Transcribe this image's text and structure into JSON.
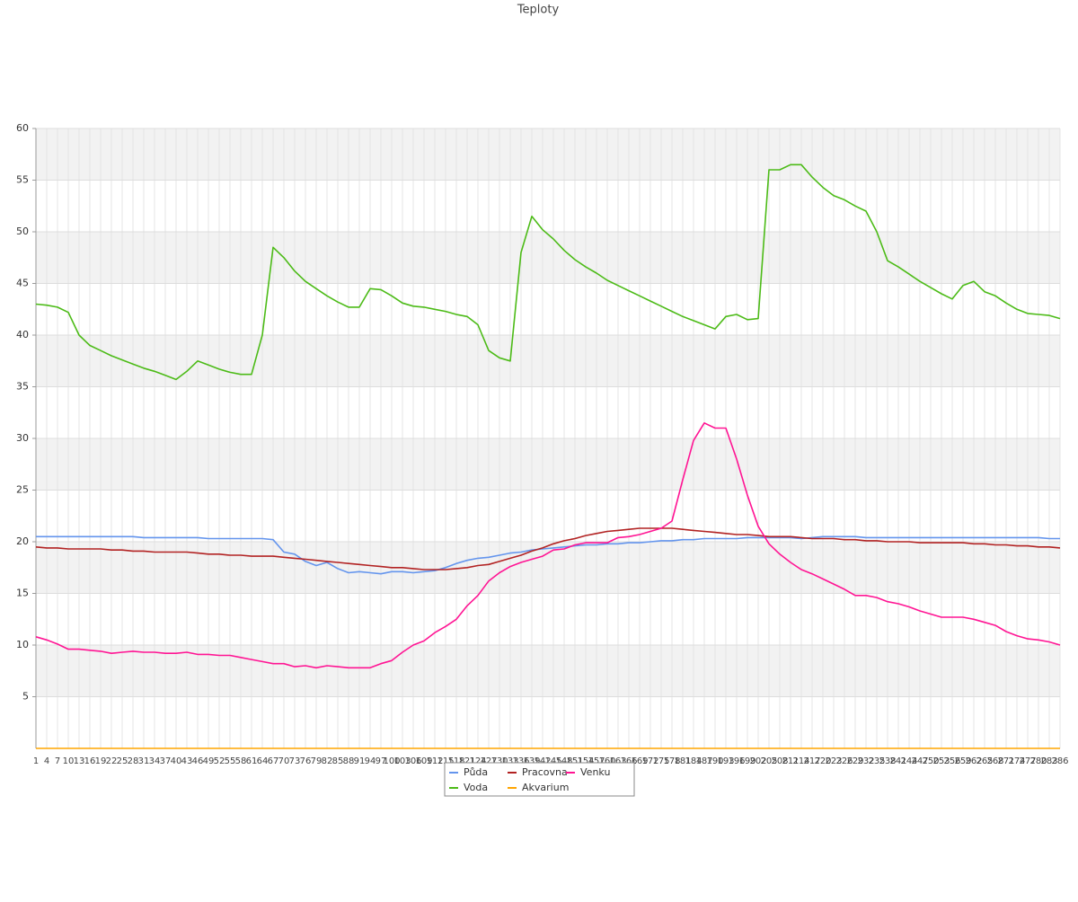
{
  "chart_data": {
    "type": "line",
    "title": "Teploty",
    "x": [
      1,
      4,
      7,
      10,
      13,
      16,
      19,
      22,
      25,
      28,
      31,
      34,
      37,
      40,
      43,
      46,
      49,
      52,
      55,
      58,
      61,
      64,
      67,
      70,
      73,
      76,
      79,
      82,
      85,
      88,
      91,
      94,
      97,
      100,
      103,
      106,
      109,
      112,
      115,
      118,
      121,
      124,
      127,
      130,
      133,
      136,
      139,
      142,
      145,
      148,
      151,
      154,
      157,
      160,
      163,
      166,
      169,
      172,
      175,
      178,
      181,
      184,
      187,
      190,
      193,
      196,
      199,
      202,
      205,
      208,
      211,
      214,
      217,
      220,
      223,
      226,
      229,
      232,
      235,
      238,
      241,
      244,
      247,
      250,
      253,
      256,
      259,
      262,
      265,
      268,
      271,
      274,
      277,
      280,
      283,
      286
    ],
    "xlim": [
      1,
      286
    ],
    "ylim": [
      0,
      60
    ],
    "yticks": [
      5,
      10,
      15,
      20,
      25,
      30,
      35,
      40,
      45,
      50,
      55,
      60
    ],
    "grid": true,
    "legend": "bottom",
    "series": [
      {
        "name": "Půda",
        "color": "#6495ed",
        "values": [
          20.5,
          20.5,
          20.5,
          20.5,
          20.5,
          20.5,
          20.5,
          20.5,
          20.5,
          20.5,
          20.4,
          20.4,
          20.4,
          20.4,
          20.4,
          20.4,
          20.3,
          20.3,
          20.3,
          20.3,
          20.3,
          20.3,
          20.2,
          19.0,
          18.8,
          18.1,
          17.7,
          18.0,
          17.4,
          17.0,
          17.1,
          17.0,
          16.9,
          17.1,
          17.1,
          17.0,
          17.1,
          17.2,
          17.5,
          17.9,
          18.2,
          18.4,
          18.5,
          18.7,
          18.9,
          19.0,
          19.2,
          19.3,
          19.4,
          19.5,
          19.6,
          19.7,
          19.7,
          19.8,
          19.8,
          19.9,
          19.9,
          20.0,
          20.1,
          20.1,
          20.2,
          20.2,
          20.3,
          20.3,
          20.3,
          20.3,
          20.4,
          20.4,
          20.4,
          20.4,
          20.4,
          20.3,
          20.4,
          20.5,
          20.5,
          20.5,
          20.5,
          20.4,
          20.4,
          20.4,
          20.4,
          20.4,
          20.4,
          20.4,
          20.4,
          20.4,
          20.4,
          20.4,
          20.4,
          20.4,
          20.4,
          20.4,
          20.4,
          20.4,
          20.3,
          20.3
        ]
      },
      {
        "name": "Voda",
        "color": "#4cbb17",
        "values": [
          43.0,
          42.9,
          42.7,
          42.2,
          40.0,
          39.0,
          38.5,
          38.0,
          37.6,
          37.2,
          36.8,
          36.5,
          36.1,
          35.7,
          36.5,
          37.5,
          37.1,
          36.7,
          36.4,
          36.2,
          36.2,
          40.0,
          48.5,
          47.5,
          46.2,
          45.2,
          44.5,
          43.8,
          43.2,
          42.7,
          42.7,
          44.5,
          44.4,
          43.8,
          43.1,
          42.8,
          42.7,
          42.5,
          42.3,
          42.0,
          41.8,
          41.0,
          38.5,
          37.8,
          37.5,
          48.0,
          51.5,
          50.2,
          49.3,
          48.2,
          47.3,
          46.6,
          46.0,
          45.3,
          44.8,
          44.3,
          43.8,
          43.3,
          42.8,
          42.3,
          41.8,
          41.4,
          41.0,
          40.6,
          41.8,
          42.0,
          41.5,
          41.6,
          56.0,
          56.0,
          56.5,
          56.5,
          55.3,
          54.3,
          53.5,
          53.1,
          52.5,
          52.0,
          50.0,
          47.2,
          46.6,
          45.9,
          45.2,
          44.6,
          44.0,
          43.5,
          44.8,
          45.2,
          44.2,
          43.8,
          43.1,
          42.5,
          42.1,
          42.0,
          41.9,
          41.6
        ]
      },
      {
        "name": "Pracovna",
        "color": "#b22222",
        "values": [
          19.5,
          19.4,
          19.4,
          19.3,
          19.3,
          19.3,
          19.3,
          19.2,
          19.2,
          19.1,
          19.1,
          19.0,
          19.0,
          19.0,
          19.0,
          18.9,
          18.8,
          18.8,
          18.7,
          18.7,
          18.6,
          18.6,
          18.6,
          18.5,
          18.4,
          18.3,
          18.2,
          18.1,
          18.0,
          17.9,
          17.8,
          17.7,
          17.6,
          17.5,
          17.5,
          17.4,
          17.3,
          17.3,
          17.3,
          17.4,
          17.5,
          17.7,
          17.8,
          18.1,
          18.4,
          18.7,
          19.1,
          19.4,
          19.8,
          20.1,
          20.3,
          20.6,
          20.8,
          21.0,
          21.1,
          21.2,
          21.3,
          21.3,
          21.3,
          21.3,
          21.2,
          21.1,
          21.0,
          20.9,
          20.8,
          20.7,
          20.7,
          20.6,
          20.5,
          20.5,
          20.5,
          20.4,
          20.3,
          20.3,
          20.3,
          20.2,
          20.2,
          20.1,
          20.1,
          20.0,
          20.0,
          20.0,
          19.9,
          19.9,
          19.9,
          19.9,
          19.9,
          19.8,
          19.8,
          19.7,
          19.7,
          19.6,
          19.6,
          19.5,
          19.5,
          19.4
        ]
      },
      {
        "name": "Akvarium",
        "color": "#ffa500",
        "values": [
          0,
          0,
          0,
          0,
          0,
          0,
          0,
          0,
          0,
          0,
          0,
          0,
          0,
          0,
          0,
          0,
          0,
          0,
          0,
          0,
          0,
          0,
          0,
          0,
          0,
          0,
          0,
          0,
          0,
          0,
          0,
          0,
          0,
          0,
          0,
          0,
          0,
          0,
          0,
          0,
          0,
          0,
          0,
          0,
          0,
          0,
          0,
          0,
          0,
          0,
          0,
          0,
          0,
          0,
          0,
          0,
          0,
          0,
          0,
          0,
          0,
          0,
          0,
          0,
          0,
          0,
          0,
          0,
          0,
          0,
          0,
          0,
          0,
          0,
          0,
          0,
          0,
          0,
          0,
          0,
          0,
          0,
          0,
          0,
          0,
          0,
          0,
          0,
          0,
          0,
          0,
          0,
          0,
          0,
          0,
          0
        ]
      },
      {
        "name": "Venku",
        "color": "#ff1493",
        "values": [
          10.8,
          10.5,
          10.1,
          9.6,
          9.6,
          9.5,
          9.4,
          9.2,
          9.3,
          9.4,
          9.3,
          9.3,
          9.2,
          9.2,
          9.3,
          9.1,
          9.1,
          9.0,
          9.0,
          8.8,
          8.6,
          8.4,
          8.2,
          8.2,
          7.9,
          8.0,
          7.8,
          8.0,
          7.9,
          7.8,
          7.8,
          7.8,
          8.2,
          8.5,
          9.3,
          10.0,
          10.4,
          11.2,
          11.8,
          12.5,
          13.8,
          14.8,
          16.2,
          17.0,
          17.6,
          18.0,
          18.3,
          18.6,
          19.2,
          19.3,
          19.7,
          19.9,
          19.9,
          19.9,
          20.4,
          20.5,
          20.7,
          21.0,
          21.3,
          22.0,
          26.0,
          29.8,
          31.5,
          31.0,
          31.0,
          28.0,
          24.5,
          21.5,
          19.8,
          18.8,
          18.0,
          17.3,
          16.9,
          16.4,
          15.9,
          15.4,
          14.8,
          14.8,
          14.6,
          14.2,
          14.0,
          13.7,
          13.3,
          13.0,
          12.7,
          12.7,
          12.7,
          12.5,
          12.2,
          11.9,
          11.3,
          10.9,
          10.6,
          10.5,
          10.3,
          10.0
        ]
      }
    ]
  }
}
